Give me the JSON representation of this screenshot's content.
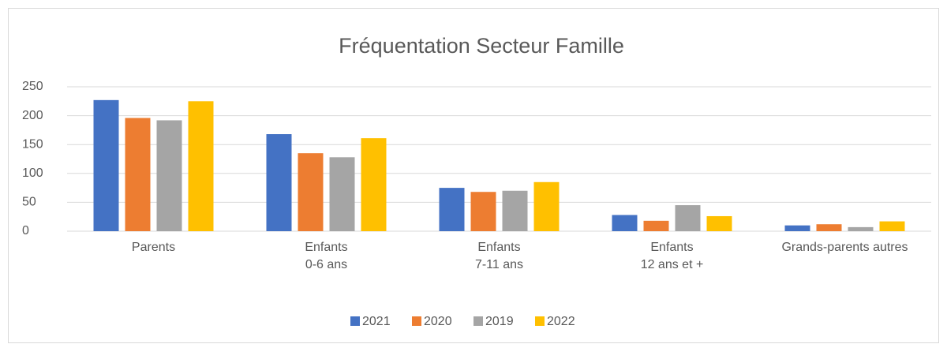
{
  "chart_data": {
    "type": "bar",
    "title": "Fréquentation Secteur Famille",
    "categories": [
      "Parents",
      "Enfants\n0-6 ans",
      "Enfants\n7-11 ans",
      "Enfants\n12 ans et +",
      "Grands-parents autres"
    ],
    "series": [
      {
        "name": "2021",
        "color": "#4472c4",
        "values": [
          227,
          168,
          75,
          28,
          10
        ]
      },
      {
        "name": "2020",
        "color": "#ed7d31",
        "values": [
          196,
          135,
          68,
          18,
          12
        ]
      },
      {
        "name": "2019",
        "color": "#a5a5a5",
        "values": [
          192,
          128,
          70,
          45,
          7
        ]
      },
      {
        "name": "2022",
        "color": "#ffc000",
        "values": [
          225,
          161,
          85,
          26,
          17
        ]
      }
    ],
    "ylim": [
      0,
      250
    ],
    "yticks": [
      0,
      50,
      100,
      150,
      200,
      250
    ],
    "grid": true,
    "legend": "bottom"
  }
}
